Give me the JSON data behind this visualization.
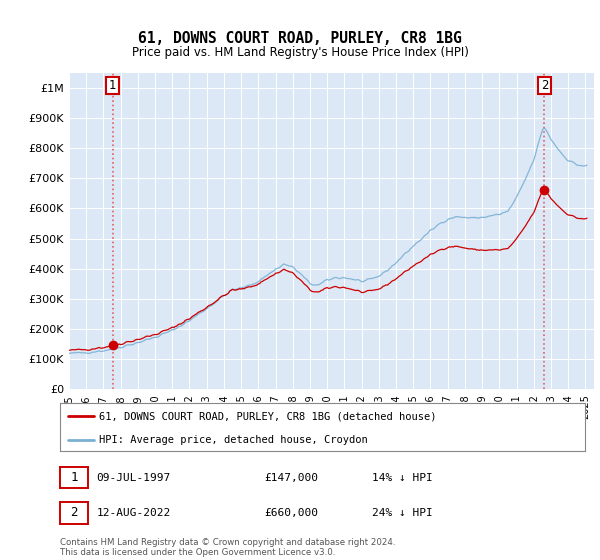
{
  "title": "61, DOWNS COURT ROAD, PURLEY, CR8 1BG",
  "subtitle": "Price paid vs. HM Land Registry's House Price Index (HPI)",
  "ylabel_ticks": [
    "£0",
    "£100K",
    "£200K",
    "£300K",
    "£400K",
    "£500K",
    "£600K",
    "£700K",
    "£800K",
    "£900K",
    "£1M"
  ],
  "ytick_vals": [
    0,
    100000,
    200000,
    300000,
    400000,
    500000,
    600000,
    700000,
    800000,
    900000,
    1000000
  ],
  "ylim": [
    0,
    1050000
  ],
  "xlim_start": 1995.0,
  "xlim_end": 2025.5,
  "plot_bg_color": "#dce8f5",
  "grid_color": "#c0d0e0",
  "legend_label_red": "61, DOWNS COURT ROAD, PURLEY, CR8 1BG (detached house)",
  "legend_label_blue": "HPI: Average price, detached house, Croydon",
  "transaction1_date": "09-JUL-1997",
  "transaction1_price": 147000,
  "transaction1_x": 1997.53,
  "transaction2_date": "12-AUG-2022",
  "transaction2_price": 660000,
  "transaction2_x": 2022.62,
  "footnote": "Contains HM Land Registry data © Crown copyright and database right 2024.\nThis data is licensed under the Open Government Licence v3.0.",
  "table_row1": [
    "1",
    "09-JUL-1997",
    "£147,000",
    "14% ↓ HPI"
  ],
  "table_row2": [
    "2",
    "12-AUG-2022",
    "£660,000",
    "24% ↓ HPI"
  ],
  "hpi_color": "#7ab0d4",
  "price_color": "#cc0000",
  "dashed_color": "#e06060"
}
